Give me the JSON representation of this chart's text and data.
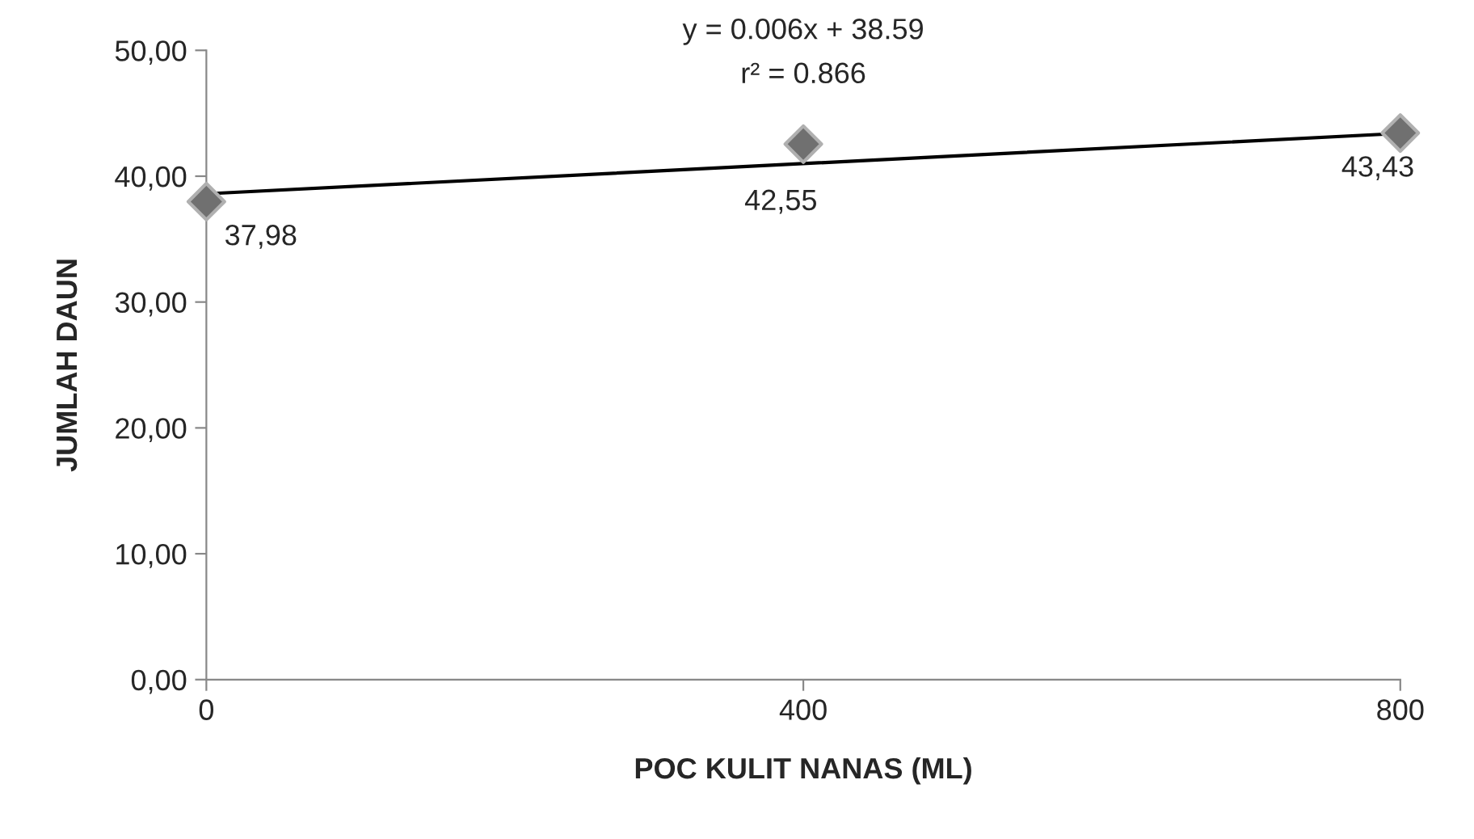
{
  "chart_data": {
    "type": "scatter",
    "xlabel": "POC KULIT NANAS (ML)",
    "ylabel": "JUMLAH DAUN",
    "xlim": [
      0,
      800
    ],
    "xticks": [
      0,
      400,
      800
    ],
    "ylim": [
      0,
      50
    ],
    "yticks": [
      {
        "value": 0,
        "label": "0,00"
      },
      {
        "value": 10,
        "label": "10,00"
      },
      {
        "value": 20,
        "label": "20,00"
      },
      {
        "value": 30,
        "label": "30,00"
      },
      {
        "value": 40,
        "label": "40,00"
      },
      {
        "value": 50,
        "label": "50,00"
      }
    ],
    "grid": false,
    "legend": false,
    "series": [
      {
        "color": "#707070",
        "marker": "diamond",
        "x": [
          0,
          400,
          800
        ],
        "values": [
          37.98,
          42.55,
          43.43
        ],
        "value_labels": [
          "37,98",
          "42,55",
          "43,43"
        ]
      },
      {
        "type": "line",
        "color": "#000000",
        "marker": "none",
        "line_style": "solid",
        "x": [
          0,
          800
        ],
        "values": [
          38.6,
          43.4
        ]
      }
    ],
    "annotations": [
      "y = 0.006x + 38.59",
      "r² = 0.866"
    ]
  }
}
